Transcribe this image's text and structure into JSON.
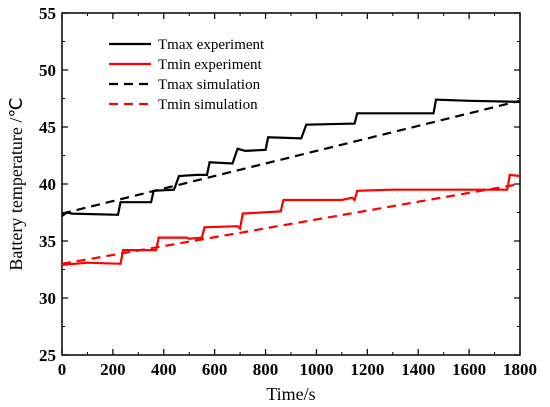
{
  "chart_data": {
    "type": "line",
    "xlabel": "Time/s",
    "ylabel": "Battery temperature /℃",
    "xlim": [
      0,
      1800
    ],
    "ylim": [
      25,
      55
    ],
    "xticks": [
      "0",
      "200",
      "400",
      "600",
      "800",
      "1000",
      "1200",
      "1400",
      "1600",
      "1800"
    ],
    "yticks": [
      "25",
      "30",
      "35",
      "40",
      "45",
      "50",
      "55"
    ],
    "grid": false,
    "legend_position": "top-left",
    "series": [
      {
        "name": "Tmax experiment",
        "color": "#000000",
        "dash": "solid",
        "points": [
          [
            0,
            37.2
          ],
          [
            20,
            37.5
          ],
          [
            40,
            37.4
          ],
          [
            220,
            37.3
          ],
          [
            230,
            38.4
          ],
          [
            350,
            38.4
          ],
          [
            360,
            39.4
          ],
          [
            440,
            39.5
          ],
          [
            460,
            40.7
          ],
          [
            530,
            40.8
          ],
          [
            570,
            40.8
          ],
          [
            580,
            41.9
          ],
          [
            670,
            41.8
          ],
          [
            690,
            43.1
          ],
          [
            720,
            42.9
          ],
          [
            800,
            43.0
          ],
          [
            810,
            44.1
          ],
          [
            940,
            44.0
          ],
          [
            960,
            45.2
          ],
          [
            1150,
            45.3
          ],
          [
            1160,
            46.2
          ],
          [
            1300,
            46.2
          ],
          [
            1460,
            46.2
          ],
          [
            1470,
            47.4
          ],
          [
            1600,
            47.3
          ],
          [
            1800,
            47.2
          ]
        ]
      },
      {
        "name": "Tmin experiment",
        "color": "#ff0000",
        "dash": "solid",
        "points": [
          [
            0,
            32.9
          ],
          [
            100,
            33.1
          ],
          [
            230,
            33.0
          ],
          [
            240,
            34.2
          ],
          [
            370,
            34.2
          ],
          [
            380,
            35.3
          ],
          [
            490,
            35.3
          ],
          [
            500,
            35.2
          ],
          [
            550,
            35.3
          ],
          [
            560,
            36.2
          ],
          [
            690,
            36.3
          ],
          [
            700,
            36.1
          ],
          [
            710,
            37.4
          ],
          [
            860,
            37.6
          ],
          [
            870,
            38.6
          ],
          [
            1100,
            38.6
          ],
          [
            1140,
            38.8
          ],
          [
            1150,
            38.6
          ],
          [
            1160,
            39.4
          ],
          [
            1300,
            39.5
          ],
          [
            1750,
            39.5
          ],
          [
            1760,
            40.8
          ],
          [
            1800,
            40.7
          ]
        ]
      },
      {
        "name": "Tmax simulation",
        "color": "#000000",
        "dash": "dashed",
        "points": [
          [
            0,
            37.4
          ],
          [
            1800,
            47.3
          ]
        ]
      },
      {
        "name": "Tmin simulation",
        "color": "#ff0000",
        "dash": "dashed",
        "points": [
          [
            0,
            33.0
          ],
          [
            1800,
            40.0
          ]
        ]
      }
    ]
  }
}
